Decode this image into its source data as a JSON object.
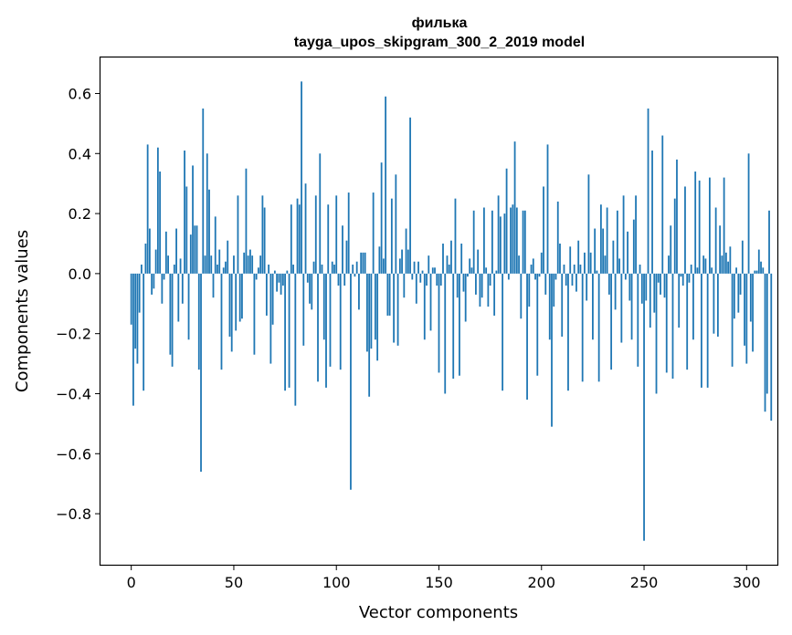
{
  "chart_data": {
    "type": "bar",
    "title": "филька",
    "subtitle": "tayga_upos_skipgram_300_2_2019 model",
    "xlabel": "Vector components",
    "ylabel": "Components values",
    "xlim": [
      -15,
      315
    ],
    "ylim": [
      -0.97,
      0.72
    ],
    "xticks": [
      0,
      50,
      100,
      150,
      200,
      250,
      300
    ],
    "xtick_labels": [
      "0",
      "50",
      "100",
      "150",
      "200",
      "250",
      "300"
    ],
    "yticks": [
      0.6,
      0.4,
      0.2,
      0.0,
      -0.2,
      -0.4,
      -0.6,
      -0.8
    ],
    "ytick_labels": [
      "0.6",
      "0.4",
      "0.2",
      "0.0",
      "−0.2",
      "−0.4",
      "−0.6",
      "−0.8"
    ],
    "grid": false,
    "legend": "none",
    "bar_color": "#1f77b4",
    "values": [
      -0.17,
      -0.44,
      -0.25,
      -0.3,
      -0.13,
      0.03,
      -0.39,
      0.1,
      0.43,
      0.15,
      -0.07,
      -0.05,
      0.08,
      0.42,
      0.34,
      -0.1,
      -0.02,
      0.14,
      0.06,
      -0.27,
      -0.31,
      0.03,
      0.15,
      -0.16,
      0.05,
      -0.1,
      0.41,
      0.29,
      -0.22,
      0.13,
      0.36,
      0.16,
      0.16,
      -0.32,
      -0.66,
      0.55,
      0.06,
      0.4,
      0.28,
      0.06,
      -0.08,
      0.19,
      0.03,
      0.08,
      -0.32,
      0.02,
      0.04,
      0.11,
      -0.21,
      -0.26,
      0.06,
      -0.19,
      0.26,
      -0.16,
      -0.15,
      0.07,
      0.35,
      0.06,
      0.08,
      0.06,
      -0.27,
      -0.02,
      0.02,
      0.06,
      0.26,
      0.22,
      -0.14,
      0.03,
      -0.3,
      -0.17,
      0.01,
      -0.06,
      -0.03,
      -0.07,
      -0.04,
      -0.39,
      0.01,
      -0.38,
      0.23,
      0.03,
      -0.44,
      0.25,
      0.23,
      0.64,
      -0.24,
      0.3,
      -0.03,
      -0.1,
      -0.12,
      0.04,
      0.26,
      -0.36,
      0.4,
      0.03,
      -0.22,
      -0.38,
      0.23,
      -0.31,
      0.04,
      0.03,
      0.26,
      -0.04,
      -0.32,
      0.16,
      -0.04,
      0.11,
      0.27,
      -0.72,
      0.03,
      -0.01,
      0.04,
      -0.12,
      0.07,
      0.07,
      0.07,
      -0.26,
      -0.41,
      -0.25,
      0.27,
      -0.22,
      -0.29,
      0.09,
      0.37,
      0.05,
      0.59,
      -0.14,
      -0.14,
      0.25,
      -0.23,
      0.33,
      -0.24,
      0.05,
      0.08,
      -0.08,
      0.15,
      0.08,
      0.52,
      -0.02,
      0.04,
      -0.1,
      0.04,
      -0.03,
      0.01,
      -0.22,
      -0.04,
      0.06,
      -0.19,
      0.02,
      0.02,
      -0.04,
      -0.33,
      -0.04,
      0.1,
      -0.4,
      0.06,
      0.03,
      0.11,
      -0.35,
      0.25,
      -0.08,
      -0.34,
      0.1,
      -0.06,
      -0.16,
      -0.01,
      0.05,
      0.02,
      0.21,
      -0.07,
      0.08,
      -0.11,
      -0.08,
      0.22,
      0.02,
      -0.11,
      -0.04,
      0.21,
      -0.14,
      0.01,
      0.26,
      0.19,
      -0.39,
      0.2,
      0.35,
      -0.02,
      0.22,
      0.23,
      0.44,
      0.22,
      0.06,
      -0.15,
      0.21,
      0.21,
      -0.42,
      -0.11,
      0.03,
      0.05,
      -0.02,
      -0.34,
      -0.01,
      0.07,
      0.29,
      -0.07,
      0.43,
      -0.22,
      -0.51,
      -0.11,
      -0.02,
      0.24,
      0.1,
      -0.21,
      0.03,
      -0.04,
      -0.39,
      0.09,
      -0.04,
      0.03,
      -0.06,
      0.11,
      0.03,
      -0.36,
      0.07,
      -0.09,
      0.33,
      0.07,
      -0.22,
      0.15,
      0.01,
      -0.36,
      0.23,
      0.15,
      0.06,
      0.22,
      -0.07,
      -0.32,
      0.11,
      -0.12,
      0.21,
      0.05,
      -0.23,
      0.26,
      -0.02,
      0.14,
      -0.09,
      -0.22,
      0.18,
      0.26,
      -0.31,
      0.03,
      -0.1,
      -0.89,
      -0.09,
      0.55,
      -0.18,
      0.41,
      -0.13,
      -0.4,
      -0.03,
      -0.07,
      0.46,
      -0.08,
      -0.33,
      0.06,
      0.16,
      -0.35,
      0.25,
      0.38,
      -0.18,
      -0.01,
      -0.04,
      0.29,
      -0.32,
      -0.03,
      0.03,
      -0.22,
      0.34,
      0.02,
      0.31,
      -0.38,
      0.06,
      0.05,
      -0.38,
      0.32,
      0.02,
      -0.2,
      0.22,
      -0.21,
      0.16,
      0.06,
      0.32,
      0.07,
      0.04,
      0.09,
      -0.31,
      -0.15,
      0.02,
      -0.13,
      -0.07,
      0.11,
      -0.24,
      -0.3,
      0.4,
      -0.16,
      -0.26,
      0.01,
      0.01,
      0.08,
      0.04,
      0.02,
      -0.46,
      -0.4,
      0.21,
      -0.49
    ]
  }
}
